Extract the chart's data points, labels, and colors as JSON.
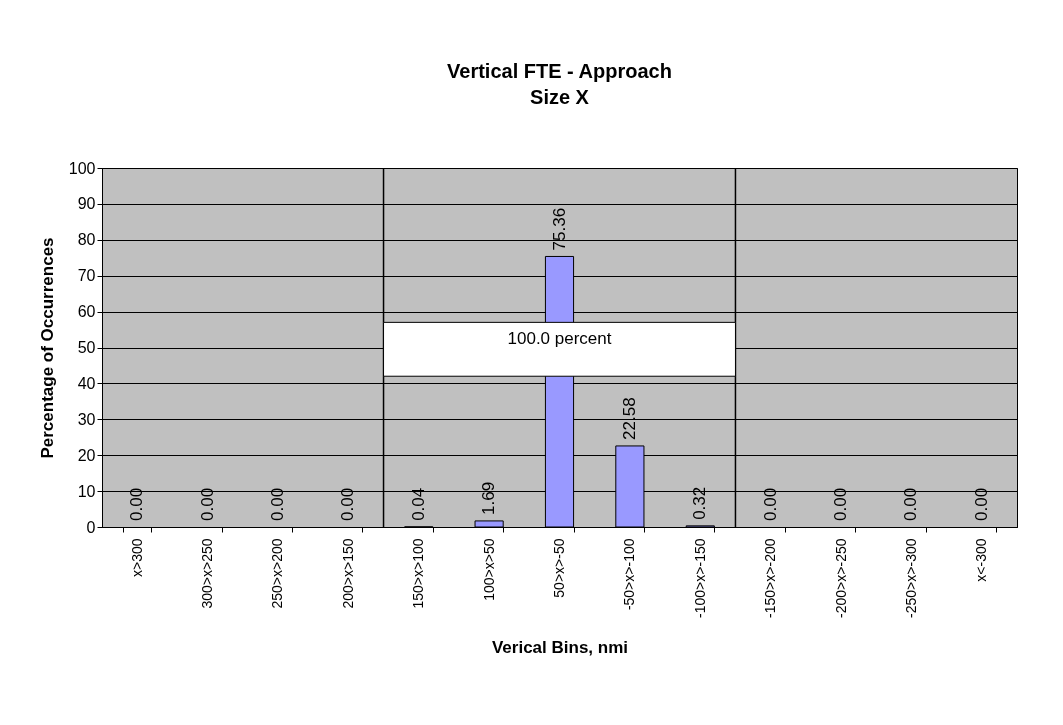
{
  "chart_data": {
    "type": "bar",
    "title": "Vertical FTE - Approach",
    "subtitle": "Size X",
    "xlabel": "Verical Bins, nmi",
    "ylabel": "Percentage of Occurrences",
    "categories": [
      "x>300",
      "300>x>250",
      "250>x>200",
      "200>x>150",
      "150>x>100",
      "100>x>50",
      "50>x>-50",
      "-50>x>-100",
      "-100>x>-150",
      "-150>x>-200",
      "-200>x>-250",
      "-250>x>-300",
      "x<-300"
    ],
    "values": [
      0,
      0,
      0,
      0,
      0.04,
      1.69,
      75.36,
      22.58,
      0.32,
      0,
      0,
      0,
      0
    ],
    "value_labels": [
      "0.00",
      "0.00",
      "0.00",
      "0.00",
      "0.04",
      "1.69",
      "75.36",
      "22.58",
      "0.32",
      "0.00",
      "0.00",
      "0.00",
      "0.00"
    ],
    "color": "#9999ff",
    "ylim": [
      0,
      100
    ],
    "yticks": [
      0,
      10,
      20,
      30,
      40,
      50,
      60,
      70,
      80,
      90,
      100
    ],
    "grid": "y",
    "bands": [
      {
        "axis": "x",
        "from": "150>x>100",
        "to": "-100>x>-150",
        "label": "100.0 percent"
      }
    ]
  }
}
